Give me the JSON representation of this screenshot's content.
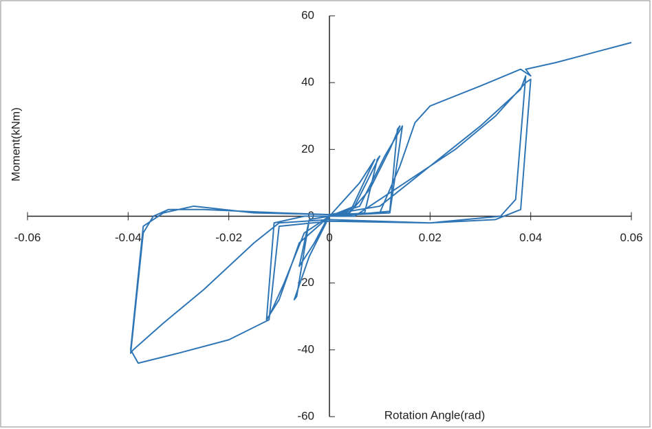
{
  "chart_data": {
    "type": "line",
    "x_label": "Rotation Angle(rad)",
    "y_label": "Moment(kNm)",
    "color": "#2e75b6",
    "xlim": [
      -0.06,
      0.06
    ],
    "xticks": [
      -0.06,
      -0.04,
      -0.02,
      0,
      0.02,
      0.04,
      0.06
    ],
    "ylim": [
      -60,
      60
    ],
    "yticks": [
      60,
      40,
      20,
      0,
      -20,
      -40,
      -60
    ],
    "x": [
      0,
      0.003,
      0.006,
      0.009,
      0.004,
      0,
      -0.003,
      -0.006,
      -0.004,
      0,
      0.005,
      0.008,
      0.01,
      0.0095,
      0.007,
      0,
      -0.004,
      -0.007,
      -0.0065,
      -0.004,
      0,
      0.004,
      0.008,
      0.012,
      0.014,
      0.0135,
      0.012,
      0.005,
      0,
      -0.005,
      -0.009,
      -0.012,
      -0.0125,
      -0.011,
      -0.005,
      0,
      0.006,
      0.011,
      0.0145,
      0.012,
      0.005,
      0,
      -0.006,
      -0.01,
      -0.0125,
      -0.011,
      -0.005,
      0,
      0.005,
      0.015,
      0.025,
      0.033,
      0.039,
      0.04,
      0.038,
      0.033,
      0.02,
      0,
      -0.01,
      -0.015,
      -0.025,
      -0.033,
      -0.039,
      -0.0395,
      -0.037,
      -0.035,
      -0.032,
      -0.025,
      -0.01,
      0,
      0.01,
      0.02,
      0.03,
      0.038,
      0.039,
      0.037,
      0.034,
      0.02,
      0,
      -0.01,
      -0.012,
      -0.02,
      -0.03,
      -0.038,
      -0.0395,
      -0.037,
      -0.033,
      -0.027,
      -0.015,
      0,
      0.01,
      0.014,
      0.017,
      0.02,
      0.03,
      0.038,
      0.04,
      0.039,
      0.045,
      0.05,
      0.055,
      0.06
    ],
    "values": [
      0,
      5,
      10,
      17,
      1,
      0.5,
      -8,
      -15,
      -1,
      0,
      3,
      12,
      18,
      17,
      1,
      0,
      -12,
      -25,
      -24,
      -1,
      0,
      1,
      8,
      20,
      27,
      26,
      1.5,
      0.5,
      0,
      -5,
      -20,
      -30,
      -31,
      -2,
      0,
      0,
      3,
      18,
      27,
      1,
      0.5,
      0,
      -8,
      -25,
      -31,
      -2,
      0,
      0,
      0,
      10,
      20,
      30,
      40,
      41,
      2,
      -1,
      -2,
      -1,
      -2,
      -8,
      -22,
      -32,
      -40,
      -41,
      -5,
      0,
      2,
      2,
      1,
      0.5,
      3,
      15,
      27,
      38,
      42,
      5,
      0,
      -2,
      -1.5,
      -3,
      -31,
      -37,
      -41,
      -44,
      -40,
      -3,
      1,
      3,
      1,
      0.5,
      1,
      15,
      28,
      33,
      39,
      44,
      42,
      44,
      46,
      48,
      50,
      52
    ]
  }
}
